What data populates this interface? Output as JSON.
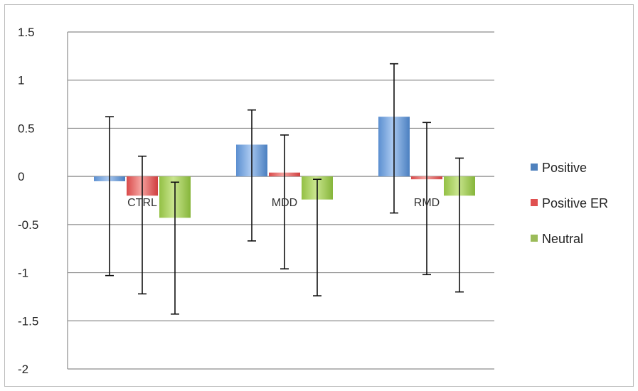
{
  "chart_data": {
    "type": "bar",
    "title": "",
    "xlabel": "",
    "ylabel": "",
    "ylim": [
      -2,
      1.5
    ],
    "yticks": [
      1.5,
      1,
      0.5,
      0,
      -0.5,
      -1,
      -1.5,
      -2
    ],
    "ytick_labels": [
      "1.5",
      "1",
      "0.5",
      "0",
      "-0.5",
      "-1",
      "-1.5",
      "-2"
    ],
    "grid": true,
    "legend_position": "right",
    "categories": [
      "CTRL",
      "MDD",
      "RMD"
    ],
    "series": [
      {
        "name": "Positive",
        "values": [
          -0.05,
          0.33,
          0.62
        ],
        "error_low": [
          -1.03,
          -0.67,
          -0.38
        ],
        "error_high": [
          0.62,
          0.69,
          1.17
        ],
        "color": "#4f81bd"
      },
      {
        "name": "Positive ER",
        "values": [
          -0.2,
          0.04,
          -0.03
        ],
        "error_low": [
          -1.22,
          -0.96,
          -1.02
        ],
        "error_high": [
          0.21,
          0.43,
          0.56
        ],
        "color": "#e05050"
      },
      {
        "name": "Neutral",
        "values": [
          -0.43,
          -0.24,
          -0.2
        ],
        "error_low": [
          -1.43,
          -1.24,
          -1.2
        ],
        "error_high": [
          -0.06,
          -0.03,
          0.19
        ],
        "color": "#9bbb59"
      }
    ]
  }
}
